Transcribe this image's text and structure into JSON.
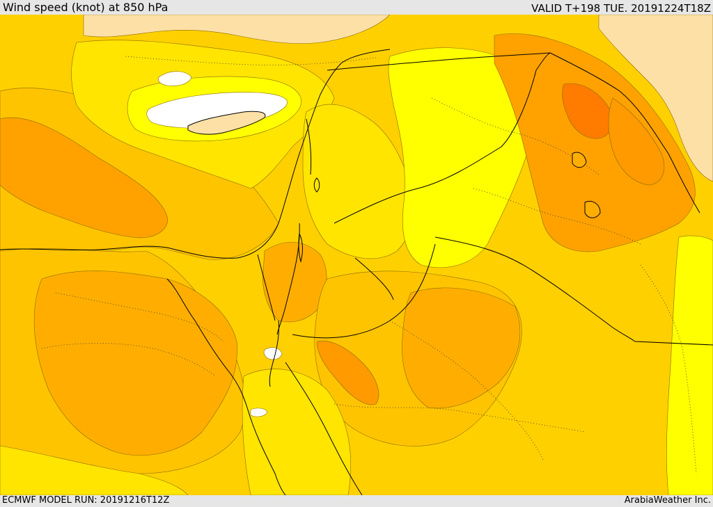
{
  "header": {
    "title": "Wind speed (knot) at 850 hPa",
    "valid_time": "VALID T+198 TUE. 20191224T18Z"
  },
  "footer": {
    "model_run": "ECMWF MODEL RUN: 20191216T12Z",
    "credit": "ArabiaWeather Inc."
  },
  "map": {
    "region": "Eastern Mediterranean and Middle East",
    "field": "wind speed at 850 hPa",
    "colors": {
      "calm_white": "#ffffff",
      "land_beige": "#fde0a6",
      "yellow_pale": "#ffff00",
      "yellow": "#ffe500",
      "gold": "#ffc400",
      "orange_light": "#ffae00",
      "orange": "#ff9a00",
      "orange_dark": "#ff7c00",
      "border_line": "#000000"
    }
  }
}
